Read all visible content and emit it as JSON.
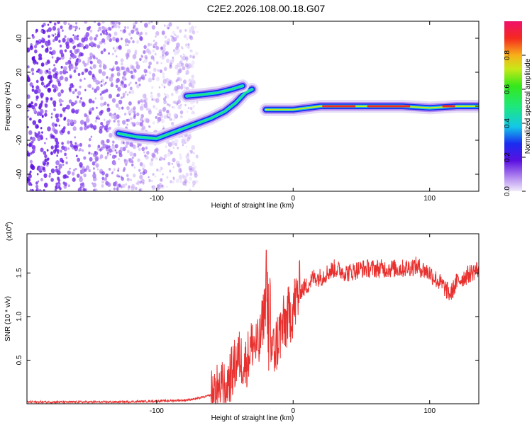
{
  "title": "C2E2.2026.108.00.18.G07",
  "chart_data": [
    {
      "type": "heatmap",
      "title": "C2E2.2026.108.00.18.G07",
      "xlabel": "Height of straight line (km)",
      "ylabel": "Frequency (Hz)",
      "xlim": [
        -195,
        136
      ],
      "ylim": [
        -50,
        50
      ],
      "xticks": [
        -100,
        0,
        100
      ],
      "yticks": [
        40,
        20,
        0,
        -20,
        -40
      ],
      "xtick_labels": [
        "-100",
        "0",
        "100"
      ],
      "ytick_labels": [
        "40",
        "20",
        "0",
        "-20",
        "-40"
      ],
      "colorbar": {
        "label": "Normalized spectral amplitude",
        "range": [
          0,
          1
        ],
        "ticks": [
          0.0,
          0.2,
          0.4,
          0.6,
          0.8
        ],
        "tick_labels": [
          "0.0",
          "0.2",
          "0.4",
          "0.6",
          "0.8"
        ]
      },
      "ridge": [
        {
          "x": -128,
          "y": -16
        },
        {
          "x": -115,
          "y": -18
        },
        {
          "x": -100,
          "y": -19
        },
        {
          "x": -90,
          "y": -16
        },
        {
          "x": -80,
          "y": -13
        },
        {
          "x": -70,
          "y": -10
        },
        {
          "x": -60,
          "y": -7
        },
        {
          "x": -50,
          "y": -3
        },
        {
          "x": -42,
          "y": 2
        },
        {
          "x": -35,
          "y": 8
        },
        {
          "x": -30,
          "y": 10
        },
        {
          "x": -20,
          "y": -2
        },
        {
          "x": 0,
          "y": -2
        },
        {
          "x": 20,
          "y": 0
        },
        {
          "x": 40,
          "y": 0
        },
        {
          "x": 60,
          "y": 0
        },
        {
          "x": 80,
          "y": 0
        },
        {
          "x": 100,
          "y": -1
        },
        {
          "x": 120,
          "y": 0
        },
        {
          "x": 136,
          "y": 0
        }
      ],
      "upper_branch": [
        {
          "x": -78,
          "y": 6
        },
        {
          "x": -65,
          "y": 7
        },
        {
          "x": -55,
          "y": 8
        },
        {
          "x": -45,
          "y": 10
        },
        {
          "x": -37,
          "y": 12
        }
      ]
    },
    {
      "type": "line",
      "xlabel": "Height of straight line (km)",
      "ylabel": "SNR (10 * v/v)",
      "y_scale_label": "(x10",
      "y_scale_exponent": "4",
      "y_scale_suffix": ")",
      "xlim": [
        -195,
        136
      ],
      "ylim": [
        0,
        1.95
      ],
      "xticks": [
        -100,
        0,
        100
      ],
      "yticks": [
        0.5,
        1.0,
        1.5
      ],
      "xtick_labels": [
        "-100",
        "0",
        "100"
      ],
      "ytick_labels": [
        "0.5",
        "1.0",
        "1.5"
      ],
      "series": [
        {
          "name": "SNR",
          "color": "#e8302e",
          "x": [
            -195,
            -160,
            -130,
            -100,
            -80,
            -70,
            -60,
            -55,
            -50,
            -45,
            -40,
            -35,
            -30,
            -25,
            -20,
            -18,
            -15,
            -10,
            -5,
            0,
            5,
            10,
            15,
            20,
            30,
            40,
            50,
            60,
            70,
            80,
            90,
            100,
            110,
            115,
            120,
            125,
            130,
            136
          ],
          "values": [
            0.02,
            0.02,
            0.02,
            0.03,
            0.04,
            0.06,
            0.1,
            0.15,
            0.2,
            0.35,
            0.55,
            0.45,
            0.7,
            0.65,
            1.2,
            0.7,
            0.55,
            0.8,
            0.95,
            1.1,
            1.3,
            1.35,
            1.45,
            1.45,
            1.55,
            1.5,
            1.55,
            1.55,
            1.55,
            1.55,
            1.58,
            1.5,
            1.35,
            1.25,
            1.4,
            1.45,
            1.5,
            1.55
          ]
        }
      ]
    }
  ],
  "colors": {
    "trace": "#e8302e",
    "axis": "#000000"
  }
}
